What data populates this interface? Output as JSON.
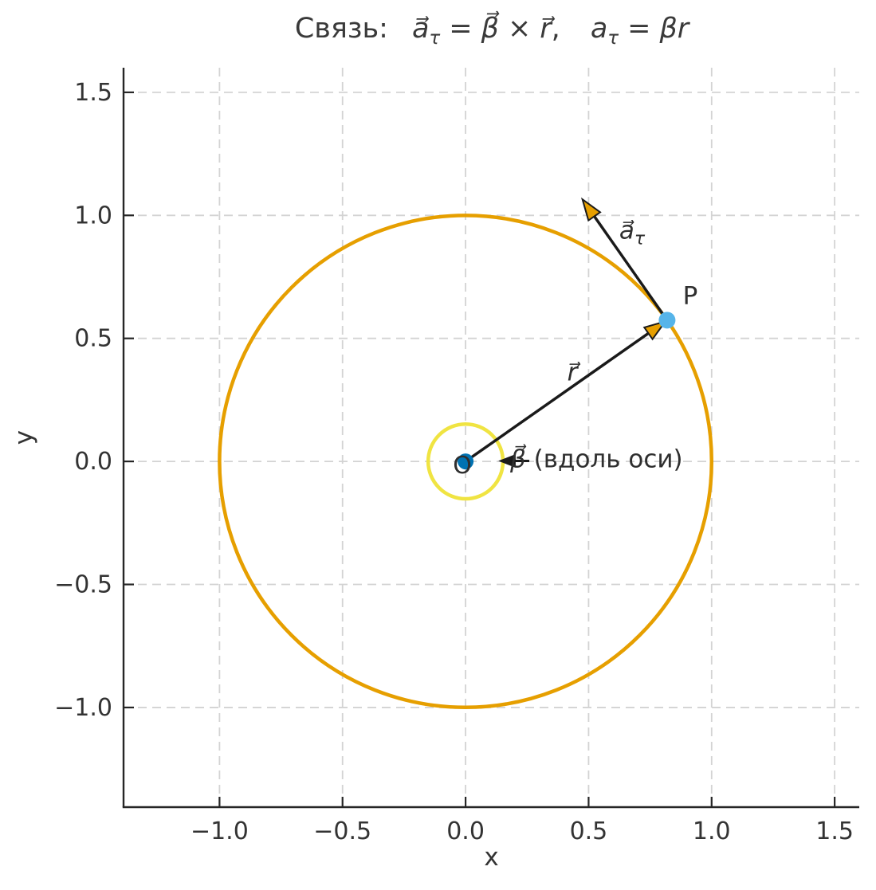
{
  "title_parts": {
    "prefix": "Связь:",
    "vec_a": "a⃗",
    "tau": "τ",
    "equals": "=",
    "vec_beta": "β⃗",
    "times": "×",
    "vec_r": "r⃗",
    "comma": ",",
    "a_scalar": "a",
    "tau2": "τ",
    "equals2": "=",
    "beta_r": "βr"
  },
  "annotations": {
    "point_p": "P",
    "point_o": "O",
    "r_vector": "r⃗",
    "a_tau_vector": "a⃗",
    "a_tau_sub": "τ",
    "beta_vector": "β⃗",
    "beta_note": " (вдоль оси)"
  },
  "chart_data": {
    "type": "line",
    "title": "Связь: a⃗_τ = β⃗ × r⃗,  a_τ = βr",
    "xlabel": "x",
    "ylabel": "y",
    "xlim": [
      -1.39,
      1.6
    ],
    "ylim": [
      -1.405,
      1.6
    ],
    "xticks": [
      -1.0,
      -0.5,
      0.0,
      0.5,
      1.0,
      1.5
    ],
    "yticks": [
      -1.0,
      -0.5,
      0.0,
      0.5,
      1.0,
      1.5
    ],
    "grid": true,
    "aspect": "equal",
    "colors": {
      "trajectory_orange": "#E69F00",
      "hub_yellow": "#F0E442",
      "center_blue": "#0072B2",
      "point_skyblue": "#56B4E9",
      "arrow_black": "#1a1a1a",
      "grid_gray": "#d3d3d3",
      "spine_dark": "#262626",
      "text_dark": "#333333"
    },
    "circles": [
      {
        "name": "trajectory-circle",
        "cx": 0,
        "cy": 0,
        "r": 1.0,
        "stroke": "#E69F00",
        "width": 4.5
      },
      {
        "name": "rotation-axis-hub",
        "cx": 0,
        "cy": 0,
        "r": 0.152,
        "stroke": "#F0E442",
        "width": 4.5
      }
    ],
    "vectors": [
      {
        "name": "r-vector",
        "from": [
          0,
          0
        ],
        "to": [
          0.812,
          0.569
        ],
        "shaft": "#1a1a1a",
        "head_fill": "#E69F00",
        "head_edge": "#1a1a1a",
        "width": 3.5,
        "head_len": 26,
        "head_half": 9
      },
      {
        "name": "a-tau-vector",
        "from": [
          0.819,
          0.574
        ],
        "to": [
          0.475,
          1.065
        ],
        "shaft": "#1a1a1a",
        "head_fill": "#E69F00",
        "head_edge": "#1a1a1a",
        "width": 3.5,
        "head_len": 26,
        "head_half": 9
      },
      {
        "name": "beta-vector",
        "from": [
          0.259,
          0.002
        ],
        "to": [
          0.142,
          0.002
        ],
        "shaft": "#1a1a1a",
        "head_fill": "#1a1a1a",
        "head_edge": "#1a1a1a",
        "width": 3.0,
        "head_len": 18,
        "head_half": 7
      }
    ],
    "points": [
      {
        "name": "center-point-O",
        "x": 0,
        "y": 0,
        "color": "#0072B2",
        "radius_px": 10
      },
      {
        "name": "particle-point-P",
        "x": 0.819,
        "y": 0.574,
        "color": "#56B4E9",
        "radius_px": 10.5
      }
    ]
  }
}
